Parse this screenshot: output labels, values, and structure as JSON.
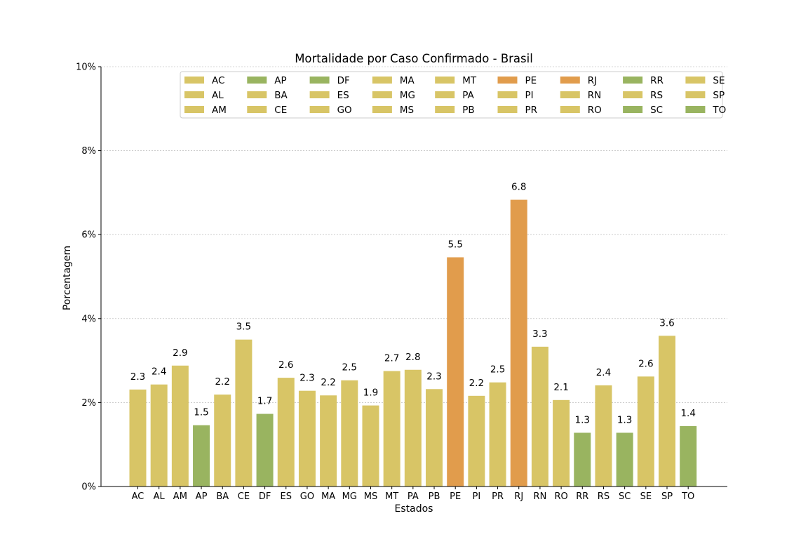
{
  "chart_data": {
    "type": "bar",
    "title": "Mortalidade por Caso Confirmado - Brasil",
    "xlabel": "Estados",
    "ylabel": "Porcentagem",
    "ylim": [
      0,
      10
    ],
    "yticks": [
      0,
      2,
      4,
      6,
      8,
      10
    ],
    "ytick_labels": [
      "0%",
      "2%",
      "4%",
      "6%",
      "8%",
      "10%"
    ],
    "grid": "horizontal dashed",
    "legend_position": "top-right",
    "colors": {
      "yellow": "#d8c566",
      "green": "#99b460",
      "orange": "#e19c4c"
    },
    "categories": [
      "AC",
      "AL",
      "AM",
      "AP",
      "BA",
      "CE",
      "DF",
      "ES",
      "GO",
      "MA",
      "MG",
      "MS",
      "MT",
      "PA",
      "PB",
      "PE",
      "PI",
      "PR",
      "RJ",
      "RN",
      "RO",
      "RR",
      "RS",
      "SC",
      "SE",
      "SP",
      "TO"
    ],
    "values": [
      2.31,
      2.43,
      2.88,
      1.46,
      2.19,
      3.5,
      1.73,
      2.59,
      2.28,
      2.17,
      2.53,
      1.93,
      2.75,
      2.78,
      2.32,
      5.46,
      2.16,
      2.48,
      6.83,
      3.33,
      2.06,
      1.28,
      2.41,
      1.28,
      2.62,
      3.59,
      1.44
    ],
    "data_labels": [
      "2.3",
      "2.4",
      "2.9",
      "1.5",
      "2.2",
      "3.5",
      "1.7",
      "2.6",
      "2.3",
      "2.2",
      "2.5",
      "1.9",
      "2.7",
      "2.8",
      "2.3",
      "5.5",
      "2.2",
      "2.5",
      "6.8",
      "3.3",
      "2.1",
      "1.3",
      "2.4",
      "1.3",
      "2.6",
      "3.6",
      "1.4"
    ],
    "bar_colors": [
      "yellow",
      "yellow",
      "yellow",
      "green",
      "yellow",
      "yellow",
      "green",
      "yellow",
      "yellow",
      "yellow",
      "yellow",
      "yellow",
      "yellow",
      "yellow",
      "yellow",
      "orange",
      "yellow",
      "yellow",
      "orange",
      "yellow",
      "yellow",
      "green",
      "yellow",
      "green",
      "yellow",
      "yellow",
      "green"
    ],
    "legend_entries": [
      {
        "label": "AC",
        "color": "yellow"
      },
      {
        "label": "AL",
        "color": "yellow"
      },
      {
        "label": "AM",
        "color": "yellow"
      },
      {
        "label": "AP",
        "color": "green"
      },
      {
        "label": "BA",
        "color": "yellow"
      },
      {
        "label": "CE",
        "color": "yellow"
      },
      {
        "label": "DF",
        "color": "green"
      },
      {
        "label": "ES",
        "color": "yellow"
      },
      {
        "label": "GO",
        "color": "yellow"
      },
      {
        "label": "MA",
        "color": "yellow"
      },
      {
        "label": "MG",
        "color": "yellow"
      },
      {
        "label": "MS",
        "color": "yellow"
      },
      {
        "label": "MT",
        "color": "yellow"
      },
      {
        "label": "PA",
        "color": "yellow"
      },
      {
        "label": "PB",
        "color": "yellow"
      },
      {
        "label": "PE",
        "color": "orange"
      },
      {
        "label": "PI",
        "color": "yellow"
      },
      {
        "label": "PR",
        "color": "yellow"
      },
      {
        "label": "RJ",
        "color": "orange"
      },
      {
        "label": "RN",
        "color": "yellow"
      },
      {
        "label": "RO",
        "color": "yellow"
      },
      {
        "label": "RR",
        "color": "green"
      },
      {
        "label": "RS",
        "color": "yellow"
      },
      {
        "label": "SC",
        "color": "green"
      },
      {
        "label": "SE",
        "color": "yellow"
      },
      {
        "label": "SP",
        "color": "yellow"
      },
      {
        "label": "TO",
        "color": "green"
      }
    ]
  }
}
